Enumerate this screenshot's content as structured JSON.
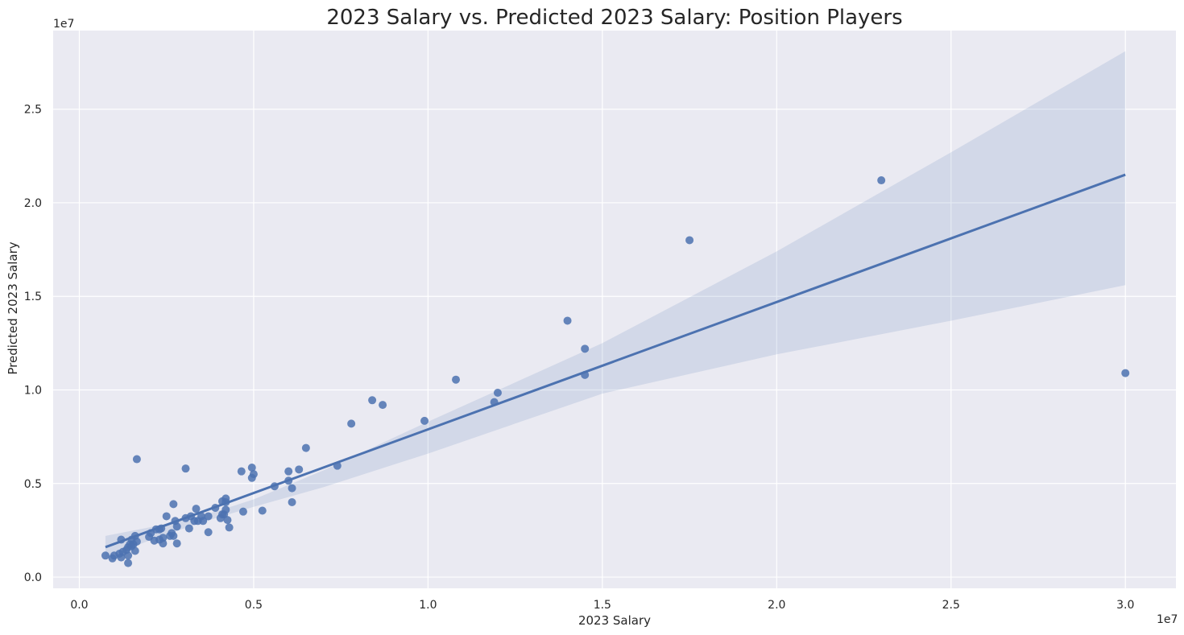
{
  "chart_data": {
    "type": "scatter",
    "title": "2023 Salary vs. Predicted 2023 Salary: Position Players",
    "xlabel": "2023 Salary",
    "ylabel": "Predicted 2023 Salary",
    "x_exponent_label": "1e7",
    "y_exponent_label": "1e7",
    "xlim": [
      -750000,
      31450000
    ],
    "ylim": [
      -600000,
      29200000
    ],
    "x_ticks": [
      0,
      5000000,
      10000000,
      15000000,
      20000000,
      25000000,
      30000000
    ],
    "x_tick_labels": [
      "0.0",
      "0.5",
      "1.0",
      "1.5",
      "2.0",
      "2.5",
      "3.0"
    ],
    "y_ticks": [
      0,
      5000000,
      10000000,
      15000000,
      20000000,
      25000000
    ],
    "y_tick_labels": [
      "0.0",
      "0.5",
      "1.0",
      "1.5",
      "2.0",
      "2.5"
    ],
    "grid": true,
    "colors": {
      "background": "#eaeaf2",
      "grid": "#ffffff",
      "point": "#4c72b0",
      "line": "#4c72b0",
      "band": "#4c72b0"
    },
    "regression_line": {
      "x": [
        750000,
        30000000
      ],
      "y": [
        1600000,
        21500000
      ]
    },
    "confidence_band": {
      "x": [
        750000,
        2000000,
        3000000,
        4000000,
        5000000,
        7000000,
        10000000,
        15000000,
        20000000,
        25000000,
        30000000
      ],
      "upper": [
        2200000,
        2650000,
        3050000,
        3550000,
        4150000,
        5700000,
        8300000,
        12500000,
        17400000,
        22700000,
        28100000
      ],
      "lower": [
        1050000,
        1950000,
        2600000,
        3200000,
        3750000,
        4800000,
        6600000,
        9800000,
        11900000,
        13700000,
        15600000
      ]
    },
    "points": [
      {
        "x": 750000,
        "y": 1150000
      },
      {
        "x": 950000,
        "y": 1000000
      },
      {
        "x": 1000000,
        "y": 1150000
      },
      {
        "x": 1150000,
        "y": 1250000
      },
      {
        "x": 1200000,
        "y": 1050000
      },
      {
        "x": 1200000,
        "y": 2000000
      },
      {
        "x": 1250000,
        "y": 1350000
      },
      {
        "x": 1350000,
        "y": 1450000
      },
      {
        "x": 1400000,
        "y": 1150000
      },
      {
        "x": 1400000,
        "y": 750000
      },
      {
        "x": 1400000,
        "y": 1600000
      },
      {
        "x": 1450000,
        "y": 1750000
      },
      {
        "x": 1500000,
        "y": 1650000
      },
      {
        "x": 1500000,
        "y": 2000000
      },
      {
        "x": 1550000,
        "y": 1750000
      },
      {
        "x": 1600000,
        "y": 2200000
      },
      {
        "x": 1600000,
        "y": 1400000
      },
      {
        "x": 1650000,
        "y": 1900000
      },
      {
        "x": 1650000,
        "y": 6300000
      },
      {
        "x": 2000000,
        "y": 2150000
      },
      {
        "x": 2050000,
        "y": 2350000
      },
      {
        "x": 2150000,
        "y": 1950000
      },
      {
        "x": 2200000,
        "y": 2550000
      },
      {
        "x": 2300000,
        "y": 2000000
      },
      {
        "x": 2300000,
        "y": 2550000
      },
      {
        "x": 2350000,
        "y": 2600000
      },
      {
        "x": 2400000,
        "y": 2100000
      },
      {
        "x": 2400000,
        "y": 1800000
      },
      {
        "x": 2500000,
        "y": 3250000
      },
      {
        "x": 2600000,
        "y": 2200000
      },
      {
        "x": 2650000,
        "y": 2350000
      },
      {
        "x": 2700000,
        "y": 2200000
      },
      {
        "x": 2700000,
        "y": 3900000
      },
      {
        "x": 2750000,
        "y": 3000000
      },
      {
        "x": 2800000,
        "y": 2700000
      },
      {
        "x": 2800000,
        "y": 1800000
      },
      {
        "x": 3050000,
        "y": 3150000
      },
      {
        "x": 3050000,
        "y": 5800000
      },
      {
        "x": 3150000,
        "y": 2600000
      },
      {
        "x": 3200000,
        "y": 3250000
      },
      {
        "x": 3300000,
        "y": 3000000
      },
      {
        "x": 3350000,
        "y": 3650000
      },
      {
        "x": 3400000,
        "y": 3000000
      },
      {
        "x": 3500000,
        "y": 3250000
      },
      {
        "x": 3550000,
        "y": 3000000
      },
      {
        "x": 3700000,
        "y": 2400000
      },
      {
        "x": 3700000,
        "y": 3250000
      },
      {
        "x": 3900000,
        "y": 3700000
      },
      {
        "x": 4050000,
        "y": 3150000
      },
      {
        "x": 4100000,
        "y": 3350000
      },
      {
        "x": 4100000,
        "y": 4050000
      },
      {
        "x": 4150000,
        "y": 3350000
      },
      {
        "x": 4200000,
        "y": 3600000
      },
      {
        "x": 4200000,
        "y": 4000000
      },
      {
        "x": 4200000,
        "y": 4200000
      },
      {
        "x": 4250000,
        "y": 3050000
      },
      {
        "x": 4300000,
        "y": 2650000
      },
      {
        "x": 4650000,
        "y": 5650000
      },
      {
        "x": 4700000,
        "y": 3500000
      },
      {
        "x": 4950000,
        "y": 5850000
      },
      {
        "x": 4950000,
        "y": 5300000
      },
      {
        "x": 5000000,
        "y": 5500000
      },
      {
        "x": 5250000,
        "y": 3550000
      },
      {
        "x": 5600000,
        "y": 4850000
      },
      {
        "x": 6000000,
        "y": 5150000
      },
      {
        "x": 6000000,
        "y": 5650000
      },
      {
        "x": 6100000,
        "y": 4750000
      },
      {
        "x": 6100000,
        "y": 4000000
      },
      {
        "x": 6300000,
        "y": 5750000
      },
      {
        "x": 6500000,
        "y": 6900000
      },
      {
        "x": 7400000,
        "y": 5950000
      },
      {
        "x": 7800000,
        "y": 8200000
      },
      {
        "x": 8400000,
        "y": 9450000
      },
      {
        "x": 8700000,
        "y": 9200000
      },
      {
        "x": 9900000,
        "y": 8350000
      },
      {
        "x": 10800000,
        "y": 10550000
      },
      {
        "x": 11900000,
        "y": 9350000
      },
      {
        "x": 12000000,
        "y": 9850000
      },
      {
        "x": 14000000,
        "y": 13700000
      },
      {
        "x": 14500000,
        "y": 12200000
      },
      {
        "x": 14500000,
        "y": 10800000
      },
      {
        "x": 17500000,
        "y": 18000000
      },
      {
        "x": 23000000,
        "y": 21200000
      },
      {
        "x": 30000000,
        "y": 10900000
      }
    ]
  }
}
